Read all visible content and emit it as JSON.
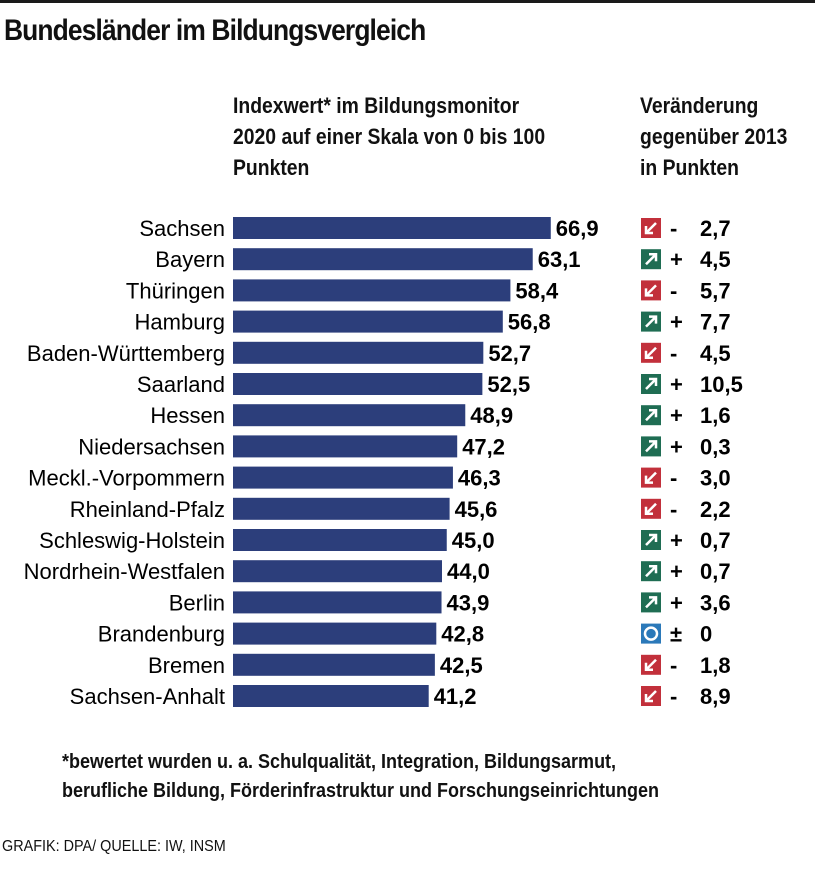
{
  "title": "Bundesländer im Bildungsvergleich",
  "col_left_header": "Indexwert* im Bildungsmonitor\n2020 auf einer Skala von 0 bis 100\nPunkten",
  "col_right_header": "Veränderung\ngegenüber 2013\nin Punkten",
  "footnote_lines": [
    "*bewertet wurden u. a. Schulqualität, Integration, Bildungsarmut,",
    "berufliche Bildung, Förderinfrastruktur und Forschungseinrichtungen"
  ],
  "source": "GRAFIK: DPA/ QUELLE: IW, INSM",
  "colors": {
    "bar": "#2c3e7b",
    "down": "#c2303b",
    "up": "#1f6d53",
    "neutral": "#2b79b9"
  },
  "chart_data": {
    "type": "bar",
    "orientation": "horizontal",
    "xlim": [
      0,
      100
    ],
    "categories": [
      "Sachsen",
      "Bayern",
      "Thüringen",
      "Hamburg",
      "Baden-Württemberg",
      "Saarland",
      "Hessen",
      "Niedersachsen",
      "Meckl.-Vorpommern",
      "Rheinland-Pfalz",
      "Schleswig-Holstein",
      "Nordrhein-Westfalen",
      "Berlin",
      "Brandenburg",
      "Bremen",
      "Sachsen-Anhalt"
    ],
    "values": [
      66.9,
      63.1,
      58.4,
      56.8,
      52.7,
      52.5,
      48.9,
      47.2,
      46.3,
      45.6,
      45.0,
      44.0,
      43.9,
      42.8,
      42.5,
      41.2
    ],
    "value_labels": [
      "66,9",
      "63,1",
      "58,4",
      "56,8",
      "52,7",
      "52,5",
      "48,9",
      "47,2",
      "46,3",
      "45,6",
      "45,0",
      "44,0",
      "43,9",
      "42,8",
      "42,5",
      "41,2"
    ],
    "change": [
      -2.7,
      4.5,
      -5.7,
      7.7,
      -4.5,
      10.5,
      1.6,
      0.3,
      -3.0,
      -2.2,
      0.7,
      0.7,
      3.6,
      0,
      -1.8,
      -8.9
    ],
    "change_signs": [
      "-",
      "+",
      "-",
      "+",
      "-",
      "+",
      "+",
      "+",
      "-",
      "-",
      "+",
      "+",
      "+",
      "±",
      "-",
      "-"
    ],
    "change_labels": [
      "2,7",
      "4,5",
      "5,7",
      "7,7",
      "4,5",
      "10,5",
      "1,6",
      "0,3",
      "3,0",
      "2,2",
      "0,7",
      "0,7",
      "3,6",
      "0",
      "1,8",
      "8,9"
    ]
  }
}
